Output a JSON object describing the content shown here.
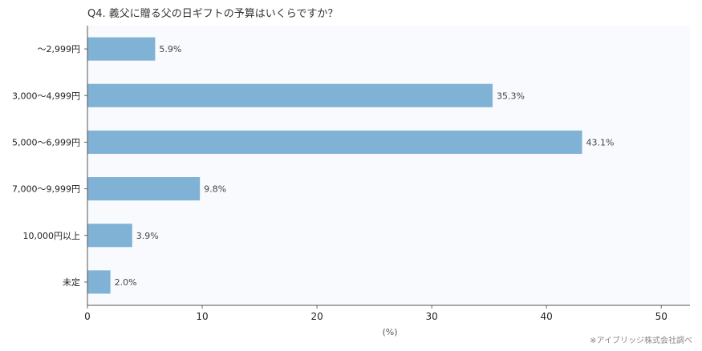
{
  "chart_data": {
    "type": "bar",
    "orientation": "horizontal",
    "title": "Q4. 義父に贈る父の日ギフトの予算はいくらですか？",
    "categories": [
      "〜2,999円",
      "3,000〜4,999円",
      "5,000〜6,999円",
      "7,000〜9,999円",
      "10,000円以上",
      "未定"
    ],
    "values": [
      5.9,
      35.3,
      43.1,
      9.8,
      3.9,
      2.0
    ],
    "data_labels": [
      "5.9%",
      "35.3%",
      "43.1%",
      "9.8%",
      "3.9%",
      "2.0%"
    ],
    "xlabel": "(%)",
    "xlim": [
      0,
      52.5
    ],
    "xticks": [
      0,
      10,
      20,
      30,
      40,
      50
    ],
    "grid": false,
    "bar_color": "#7fb2d5",
    "plot_background": "#f8fafd",
    "source": "※アイブリッジ株式会社調べ"
  }
}
